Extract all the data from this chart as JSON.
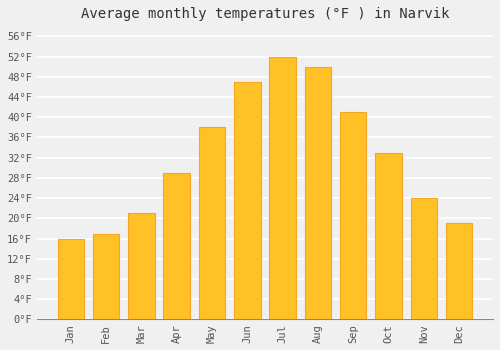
{
  "title": "Average monthly temperatures (°F ) in Narvik",
  "months": [
    "Jan",
    "Feb",
    "Mar",
    "Apr",
    "May",
    "Jun",
    "Jul",
    "Aug",
    "Sep",
    "Oct",
    "Nov",
    "Dec"
  ],
  "values": [
    16,
    17,
    21,
    29,
    38,
    47,
    52,
    50,
    41,
    33,
    24,
    19
  ],
  "bar_color_face": "#FFC125",
  "bar_color_edge": "#F5A623",
  "ylim": [
    0,
    58
  ],
  "yticks": [
    0,
    4,
    8,
    12,
    16,
    20,
    24,
    28,
    32,
    36,
    40,
    44,
    48,
    52,
    56
  ],
  "ytick_labels": [
    "0°F",
    "4°F",
    "8°F",
    "12°F",
    "16°F",
    "20°F",
    "24°F",
    "28°F",
    "32°F",
    "36°F",
    "40°F",
    "44°F",
    "48°F",
    "52°F",
    "56°F"
  ],
  "title_fontsize": 10,
  "tick_fontsize": 7.5,
  "background_color": "#f0f0f0",
  "grid_color": "#ffffff",
  "bar_width": 0.75,
  "font_family": "monospace"
}
